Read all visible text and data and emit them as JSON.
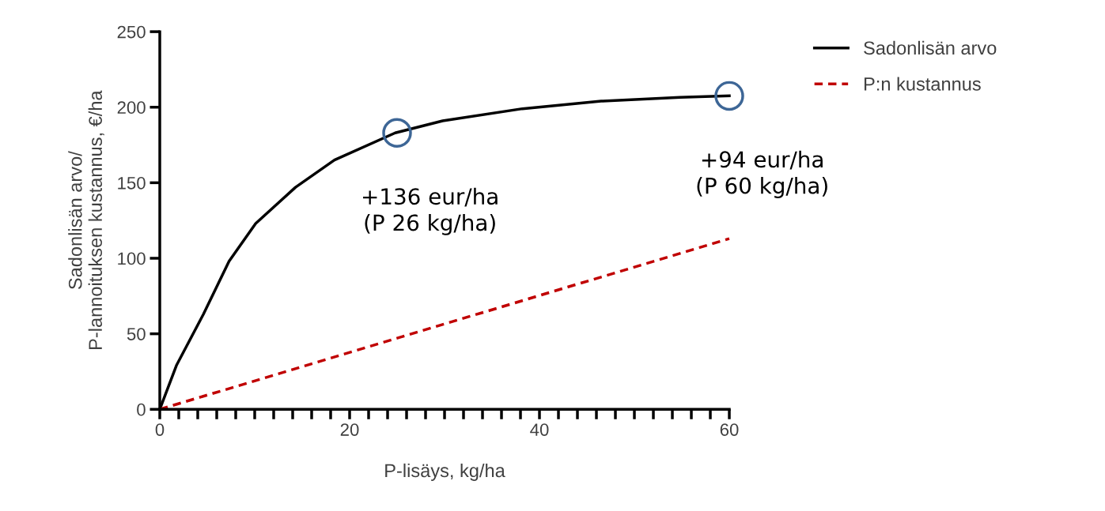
{
  "chart_data": {
    "type": "line",
    "xlabel": "P-lisäys, kg/ha",
    "ylabel": "Sadonlisän arvo/\nP-lannoituksen kustannus, €/ha",
    "xlim": [
      0,
      60
    ],
    "ylim": [
      0,
      250
    ],
    "xticks": [
      0,
      {
        "value": 2,
        "label": null
      },
      {
        "value": 4,
        "label": null
      },
      {
        "value": 6,
        "label": null
      },
      {
        "value": 8,
        "label": null
      },
      {
        "value": 10,
        "label": null
      },
      {
        "value": 12,
        "label": null
      },
      {
        "value": 14,
        "label": null
      },
      {
        "value": 16,
        "label": null
      },
      {
        "value": 18,
        "label": null
      },
      20,
      {
        "value": 22,
        "label": null
      },
      {
        "value": 24,
        "label": null
      },
      {
        "value": 26,
        "label": null
      },
      {
        "value": 28,
        "label": null
      },
      {
        "value": 30,
        "label": null
      },
      {
        "value": 32,
        "label": null
      },
      {
        "value": 34,
        "label": null
      },
      {
        "value": 36,
        "label": null
      },
      {
        "value": 38,
        "label": null
      },
      40,
      {
        "value": 42,
        "label": null
      },
      {
        "value": 44,
        "label": null
      },
      {
        "value": 46,
        "label": null
      },
      {
        "value": 48,
        "label": null
      },
      {
        "value": 50,
        "label": null
      },
      {
        "value": 52,
        "label": null
      },
      {
        "value": 54,
        "label": null
      },
      {
        "value": 56,
        "label": null
      },
      {
        "value": 58,
        "label": null
      },
      60
    ],
    "yticks": [
      0,
      50,
      100,
      150,
      200,
      250
    ],
    "grid": false,
    "legend": "top right",
    "series": [
      {
        "name": "Sadonlisän arvo",
        "color": "#000000",
        "line_style": "solid",
        "marker": "none",
        "x": [
          0,
          1.75,
          4.6,
          7.3,
          10.1,
          14.3,
          18.4,
          24.8,
          29.8,
          38.2,
          46.5,
          54.8,
          60
        ],
        "values": [
          0,
          29,
          63,
          98,
          123,
          147,
          165,
          183,
          191,
          199,
          204,
          206.5,
          207.5
        ]
      },
      {
        "name": "P:n kustannus",
        "color": "#c00000",
        "line_style": "dashed",
        "marker": "none",
        "x": [
          0,
          60
        ],
        "values": [
          0,
          113
        ]
      },
      {
        "type": "scatter",
        "color": "#3d6696",
        "marker": "circle",
        "x": [
          25,
          60
        ],
        "values": [
          183,
          207.5
        ]
      }
    ],
    "annotations": [
      {
        "text": "+136 eur/ha\n(P 26 kg/ha)",
        "x": 25,
        "y": 183
      },
      {
        "text": "+94 eur/ha\n(P 60 kg/ha)",
        "x": 60,
        "y": 207.5
      }
    ]
  }
}
